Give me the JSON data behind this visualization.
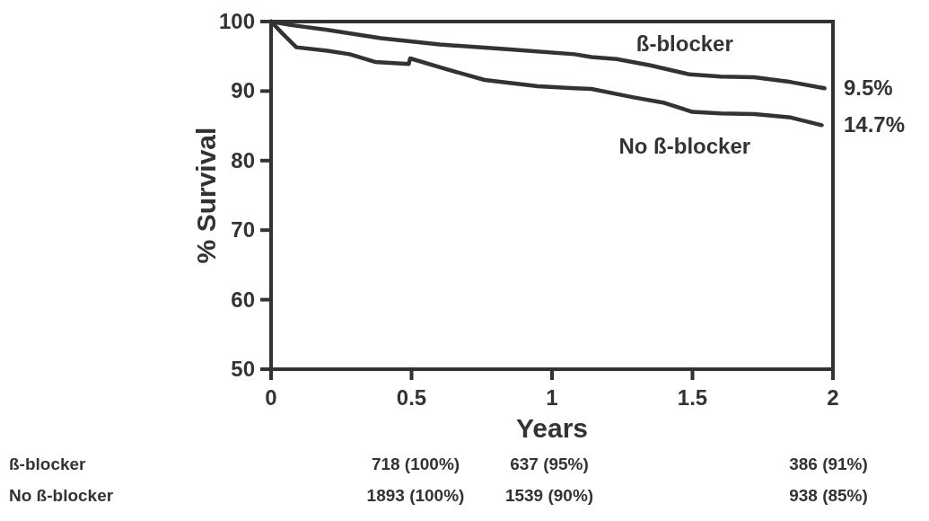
{
  "chart_data": {
    "type": "line",
    "xlabel": "Years",
    "ylabel": "% Survival",
    "xlim": [
      0,
      2
    ],
    "ylim": [
      50,
      100
    ],
    "xticks": [
      0,
      0.5,
      1,
      1.5,
      2
    ],
    "yticks": [
      50,
      60,
      70,
      80,
      90,
      100
    ],
    "grid": false,
    "marker": "none",
    "line_style": "solid",
    "series": [
      {
        "name": "ß-blocker",
        "color": "#333333",
        "x": [
          0,
          0.07,
          0.2,
          0.39,
          0.6,
          0.85,
          1.08,
          1.14,
          1.23,
          1.35,
          1.49,
          1.6,
          1.72,
          1.85,
          1.97
        ],
        "values": [
          100,
          99.5,
          98.8,
          97.6,
          96.7,
          96,
          95.3,
          94.9,
          94.6,
          93.7,
          92.4,
          92.1,
          92,
          91.3,
          90.4
        ]
      },
      {
        "name": "No ß-blocker",
        "color": "#333333",
        "x": [
          0,
          0.04,
          0.09,
          0.2,
          0.28,
          0.37,
          0.49,
          0.495,
          0.62,
          0.76,
          0.95,
          1.08,
          1.14,
          1.29,
          1.4,
          1.5,
          1.6,
          1.72,
          1.85,
          1.96
        ],
        "values": [
          100,
          98.3,
          96.3,
          95.8,
          95.3,
          94.2,
          93.9,
          94.7,
          93.2,
          91.6,
          90.7,
          90.4,
          90.3,
          89.1,
          88.3,
          87,
          86.8,
          86.7,
          86.2,
          85.1
        ]
      }
    ],
    "annotations": [
      "9.5%",
      "14.7%",
      "ß-blocker",
      "718 (100%)",
      "637 (95%)",
      "386 (91%)",
      "No ß-blocker",
      "1893 (100%)",
      "1539 (90%)",
      "938 (85%)"
    ]
  }
}
